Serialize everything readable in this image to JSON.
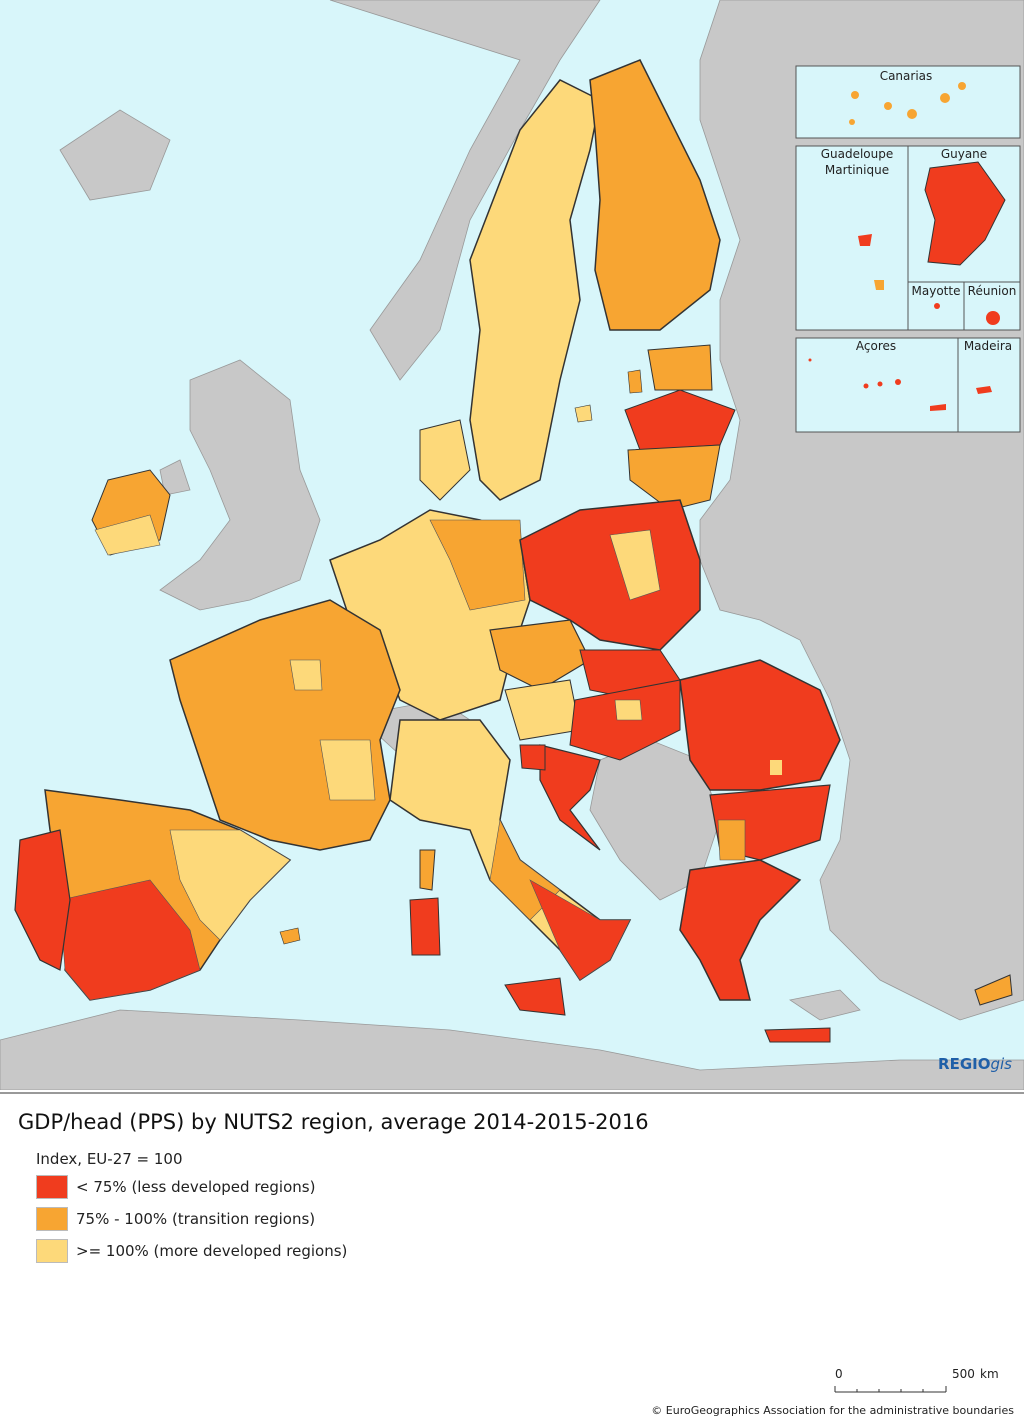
{
  "map": {
    "insets": {
      "canarias": "Canarias",
      "guadeloupe": "Guadeloupe",
      "martinique": "Martinique",
      "guyane": "Guyane",
      "mayotte": "Mayotte",
      "reunion": "Réunion",
      "acores": "Açores",
      "madeira": "Madeira"
    },
    "colors": {
      "sea": "#d8f6fa",
      "non_eu": "#c8c8c8",
      "less_developed": "#f03c1e",
      "transition": "#f7a532",
      "more_developed": "#fdd97a"
    }
  },
  "branding": {
    "bold": "REGIO",
    "italic": "gis"
  },
  "legend": {
    "title": "GDP/head (PPS) by NUTS2 region, average 2014-2015-2016",
    "index_note": "Index, EU-27 = 100",
    "items": [
      {
        "label": "< 75% (less developed regions)",
        "color": "#f03c1e"
      },
      {
        "label": "75% - 100% (transition regions)",
        "color": "#f7a532"
      },
      {
        "label": ">= 100% (more developed regions)",
        "color": "#fdd97a"
      }
    ]
  },
  "scale": {
    "zero": "0",
    "max": "500",
    "unit": "km"
  },
  "copyright": "© EuroGeographics Association for the administrative boundaries"
}
